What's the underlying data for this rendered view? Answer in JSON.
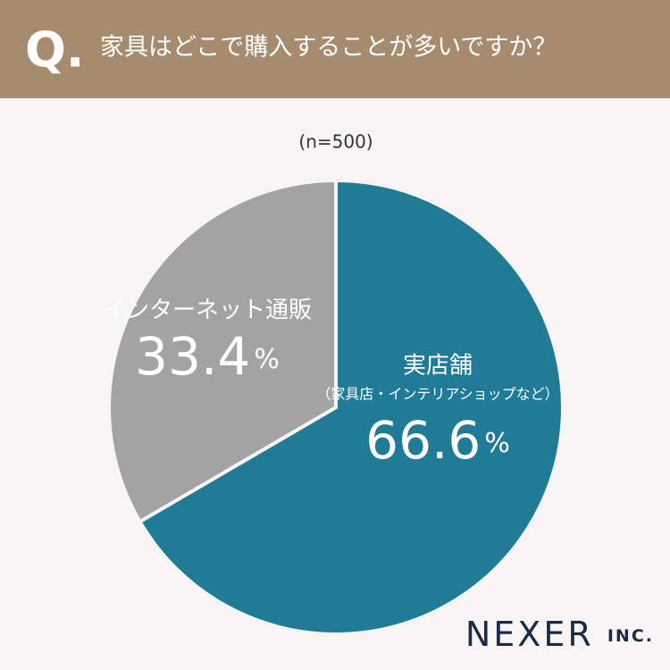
{
  "chart_data": {
    "type": "pie",
    "question_prefix": "Q.",
    "title": "家具はどこで購入することが多いですか？",
    "subtitle": "(n=500)",
    "categories": [
      "実店舗",
      "インターネット通販"
    ],
    "category_notes": [
      "（家具店・インテリアショップなど）",
      null
    ],
    "values": [
      66.6,
      33.4
    ],
    "unit": "%",
    "colors": [
      "#1f7b96",
      "#a3a3a3"
    ],
    "brand": "NEXER",
    "brand_suffix": "INC."
  }
}
